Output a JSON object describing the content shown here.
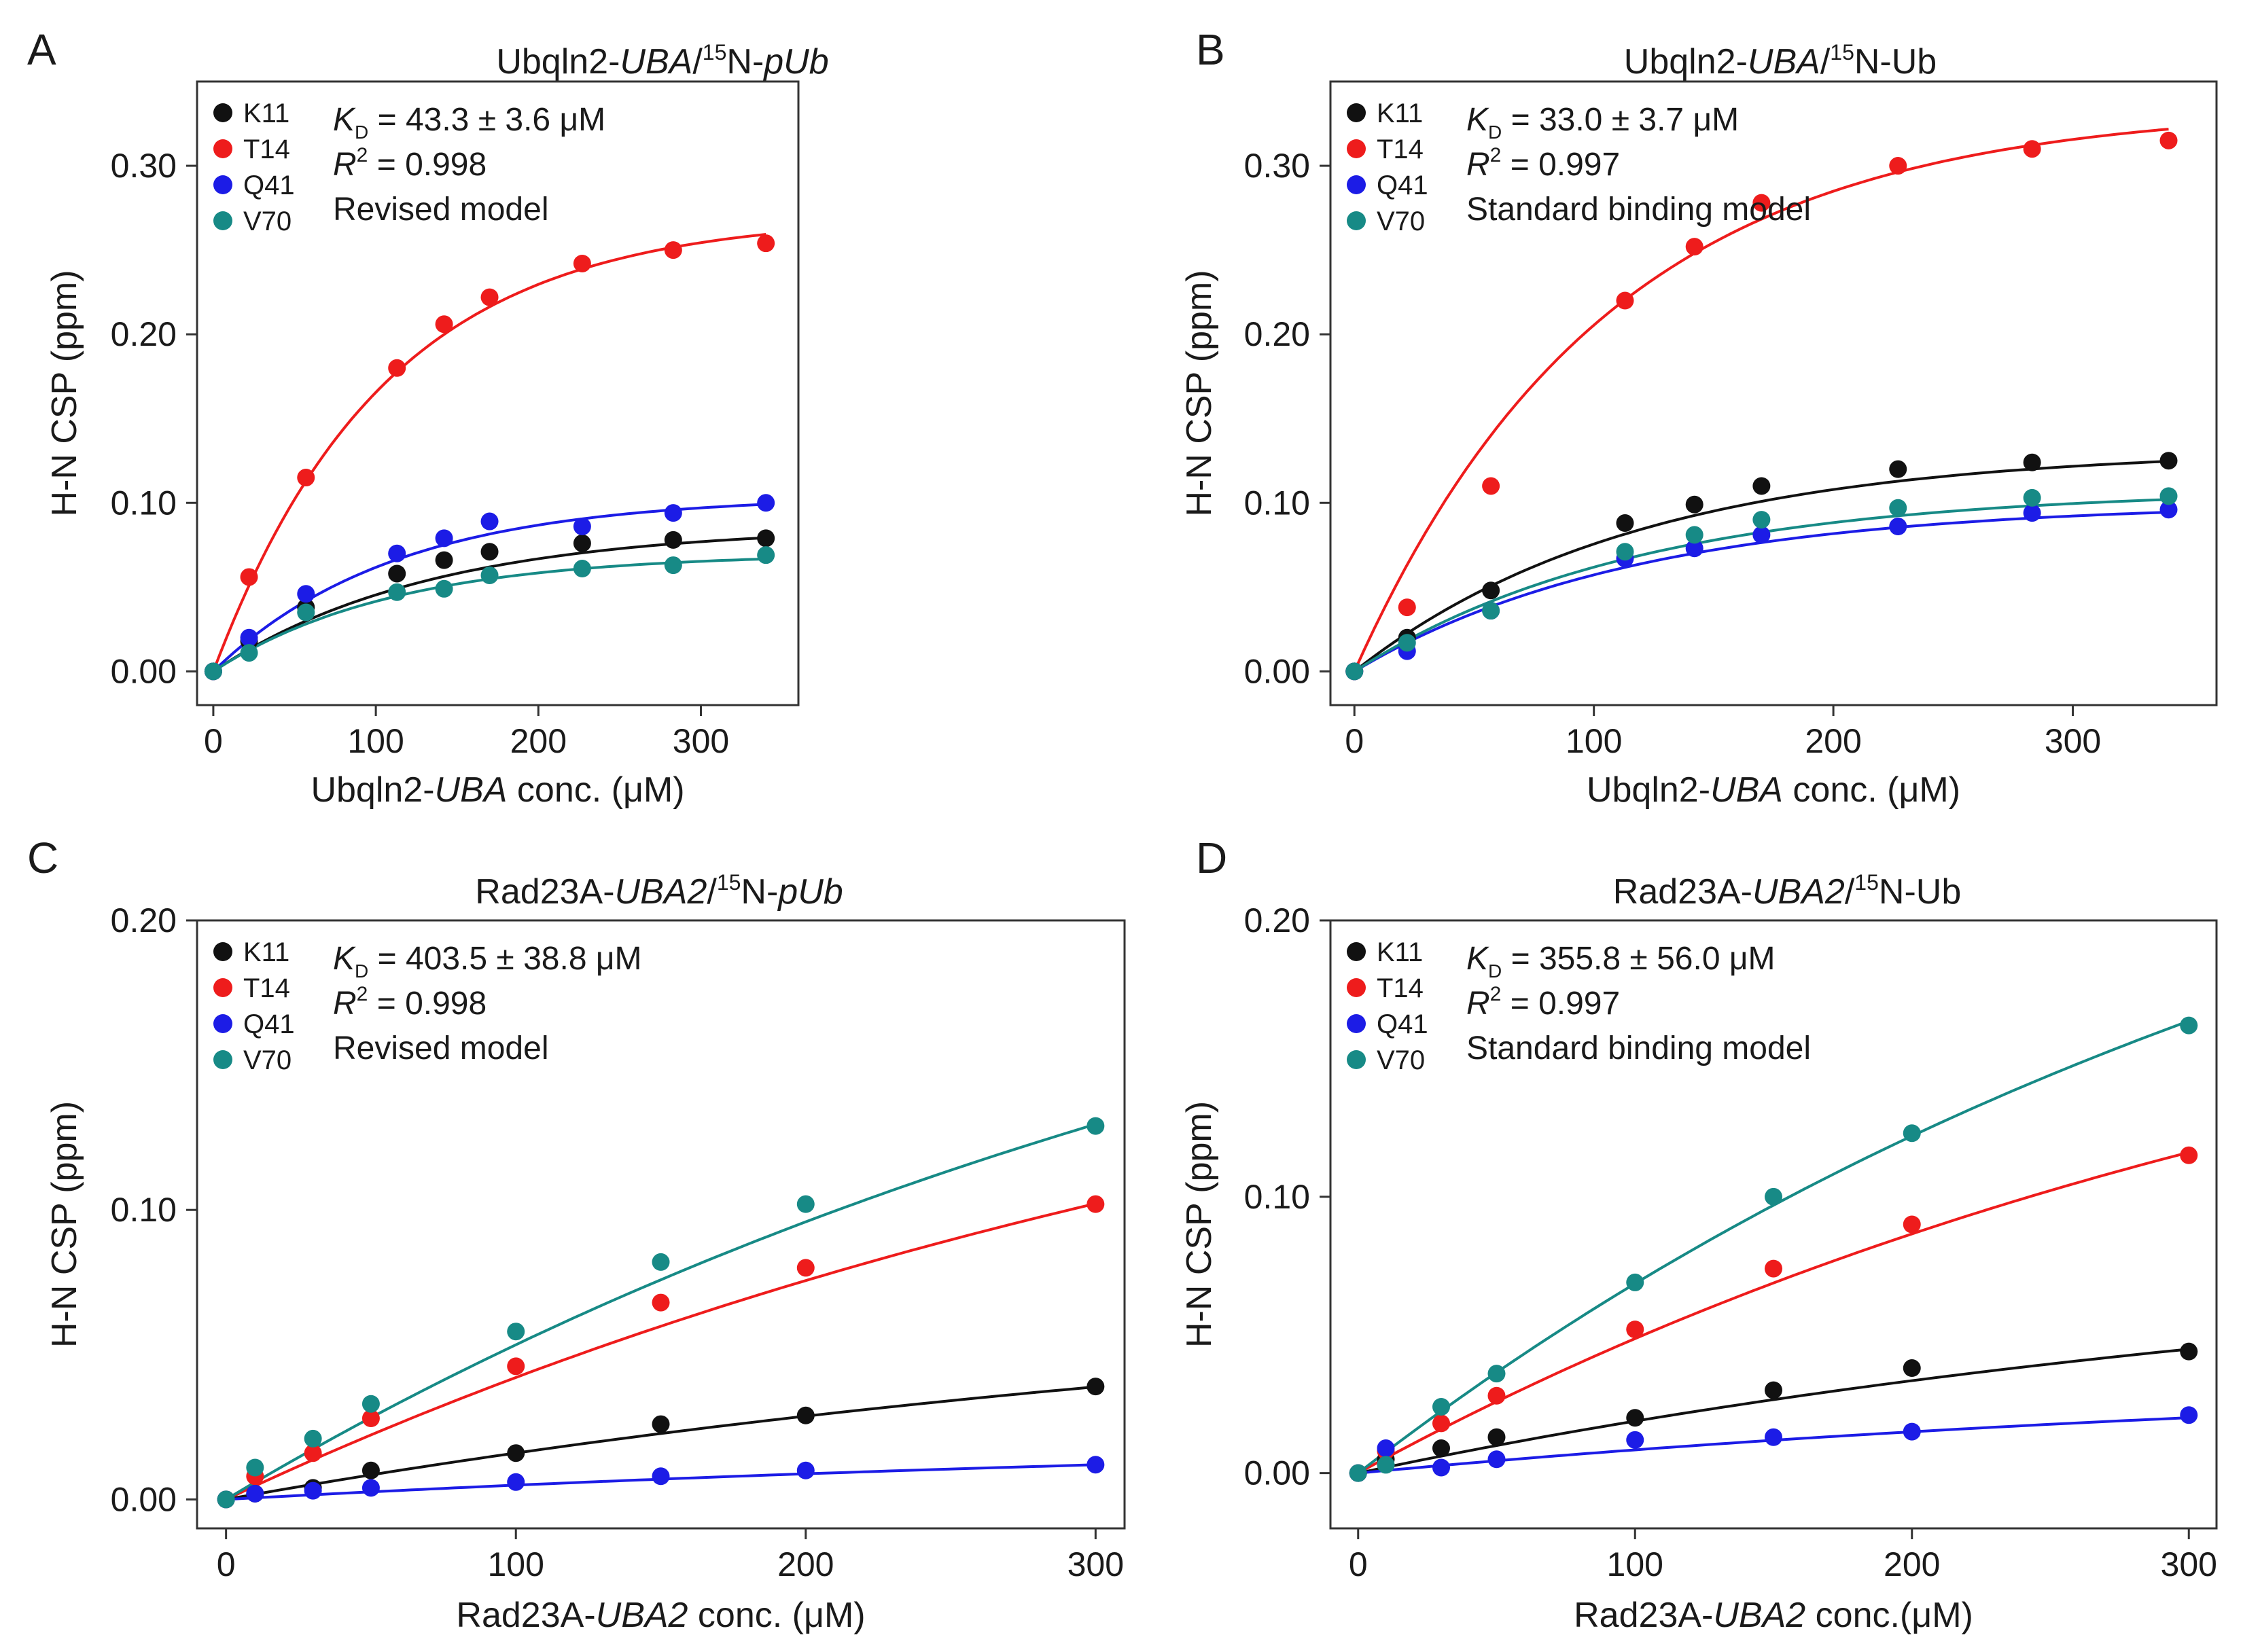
{
  "colors": {
    "K11": "#111111",
    "T14": "#ee1c1c",
    "Q41": "#1c1ce6",
    "V70": "#178a86",
    "axis": "#333333"
  },
  "chart_data": [
    {
      "type": "scatter",
      "panel_letter": "A",
      "title": {
        "pre": "Ubqln2-",
        "ital": "UBA",
        "slash": "/",
        "sup": "15",
        "post": "N-",
        "ital2": "pUb"
      },
      "xlabel": {
        "pre": "Ubqln2-",
        "ital": "UBA",
        "post": " conc. (μM)"
      },
      "ylabel": "H-N CSP (ppm)",
      "xlim": [
        -10,
        360
      ],
      "ylim": [
        -0.02,
        0.35
      ],
      "xticks": [
        0,
        100,
        200,
        300
      ],
      "xtick_labels": [
        "0",
        "100",
        "200",
        "300"
      ],
      "yticks": [
        0.0,
        0.1,
        0.2,
        0.3
      ],
      "ytick_labels": [
        "0.00",
        "0.10",
        "0.20",
        "0.30"
      ],
      "legend": [
        "K11",
        "T14",
        "Q41",
        "V70"
      ],
      "annotation": {
        "kd": "K",
        "kd_sub": "D",
        "kd_value": " = 43.3 ± 3.6 μM",
        "r2": "R",
        "r2_sup": "2",
        "r2_value": " = 0.998",
        "model": "Revised model"
      },
      "x": [
        0,
        22,
        57,
        113,
        142,
        170,
        227,
        283,
        340
      ],
      "series": [
        {
          "name": "K11",
          "values": [
            0,
            0.018,
            0.038,
            0.058,
            0.066,
            0.071,
            0.076,
            0.078,
            0.079
          ],
          "fit": {
            "amax": 0.086,
            "k": 0.0075
          }
        },
        {
          "name": "T14",
          "values": [
            0,
            0.056,
            0.115,
            0.18,
            0.206,
            0.222,
            0.242,
            0.25,
            0.254
          ],
          "fit": {
            "amax": 0.27,
            "k": 0.0095
          }
        },
        {
          "name": "Q41",
          "values": [
            0,
            0.02,
            0.046,
            0.07,
            0.079,
            0.089,
            0.086,
            0.094,
            0.1
          ],
          "fit": {
            "amax": 0.104,
            "k": 0.009
          }
        },
        {
          "name": "V70",
          "values": [
            0,
            0.011,
            0.035,
            0.047,
            0.049,
            0.057,
            0.061,
            0.063,
            0.069
          ],
          "fit": {
            "amax": 0.07,
            "k": 0.009
          }
        }
      ]
    },
    {
      "type": "scatter",
      "panel_letter": "B",
      "title": {
        "pre": "Ubqln2-",
        "ital": "UBA",
        "slash": "/",
        "sup": "15",
        "post": "N-Ub",
        "ital2": ""
      },
      "xlabel": {
        "pre": "Ubqln2-",
        "ital": "UBA",
        "post": " conc. (μM)"
      },
      "ylabel": "H-N CSP (ppm)",
      "xlim": [
        -10,
        360
      ],
      "ylim": [
        -0.02,
        0.35
      ],
      "xticks": [
        0,
        100,
        200,
        300
      ],
      "xtick_labels": [
        "0",
        "100",
        "200",
        "300"
      ],
      "yticks": [
        0.0,
        0.1,
        0.2,
        0.3
      ],
      "ytick_labels": [
        "0.00",
        "0.10",
        "0.20",
        "0.30"
      ],
      "legend": [
        "K11",
        "T14",
        "Q41",
        "V70"
      ],
      "annotation": {
        "kd": "K",
        "kd_sub": "D",
        "kd_value": " = 33.0 ± 3.7 μM",
        "r2": "R",
        "r2_sup": "2",
        "r2_value": " = 0.997",
        "model": "Standard binding model"
      },
      "x": [
        0,
        22,
        57,
        113,
        142,
        170,
        227,
        283,
        340
      ],
      "series": [
        {
          "name": "K11",
          "values": [
            0,
            0.02,
            0.048,
            0.088,
            0.099,
            0.11,
            0.12,
            0.124,
            0.125
          ],
          "fit": {
            "amax": 0.132,
            "k": 0.0085
          }
        },
        {
          "name": "T14",
          "values": [
            0,
            0.038,
            0.11,
            0.22,
            0.252,
            0.278,
            0.3,
            0.31,
            0.315
          ],
          "fit": {
            "amax": 0.335,
            "k": 0.0095
          }
        },
        {
          "name": "Q41",
          "values": [
            0,
            0.012,
            0.036,
            0.067,
            0.073,
            0.081,
            0.086,
            0.094,
            0.096
          ],
          "fit": {
            "amax": 0.1,
            "k": 0.0085
          }
        },
        {
          "name": "V70",
          "values": [
            0,
            0.017,
            0.036,
            0.071,
            0.081,
            0.09,
            0.097,
            0.103,
            0.104
          ],
          "fit": {
            "amax": 0.108,
            "k": 0.0085
          }
        }
      ]
    },
    {
      "type": "scatter",
      "panel_letter": "C",
      "title": {
        "pre": "Rad23A-",
        "ital": "UBA2",
        "slash": "/",
        "sup": "15",
        "post": "N-",
        "ital2": "pUb"
      },
      "xlabel": {
        "pre": "Rad23A-",
        "ital": "UBA2",
        "post": " conc. (μM)"
      },
      "ylabel": "H-N CSP (ppm)",
      "xlim": [
        -10,
        310
      ],
      "ylim": [
        -0.01,
        0.2
      ],
      "xticks": [
        0,
        100,
        200,
        300
      ],
      "xtick_labels": [
        "0",
        "100",
        "200",
        "300"
      ],
      "yticks": [
        0.0,
        0.1,
        0.2
      ],
      "ytick_labels": [
        "0.00",
        "0.10",
        "0.20"
      ],
      "legend": [
        "K11",
        "T14",
        "Q41",
        "V70"
      ],
      "annotation": {
        "kd": "K",
        "kd_sub": "D",
        "kd_value": " = 403.5 ± 38.8 μM",
        "r2": "R",
        "r2_sup": "2",
        "r2_value": " = 0.998",
        "model": "Revised model"
      },
      "x": [
        0,
        10,
        30,
        50,
        100,
        150,
        200,
        300
      ],
      "series": [
        {
          "name": "K11",
          "values": [
            0,
            0.002,
            0.004,
            0.01,
            0.016,
            0.026,
            0.029,
            0.039
          ],
          "fit": {
            "amax": 0.078,
            "k": 0.0023
          }
        },
        {
          "name": "T14",
          "values": [
            0,
            0.008,
            0.016,
            0.028,
            0.046,
            0.068,
            0.08,
            0.102
          ],
          "fit": {
            "amax": 0.205,
            "k": 0.0023
          }
        },
        {
          "name": "Q41",
          "values": [
            0,
            0.002,
            0.003,
            0.004,
            0.006,
            0.008,
            0.01,
            0.012
          ],
          "fit": {
            "amax": 0.024,
            "k": 0.0023
          }
        },
        {
          "name": "V70",
          "values": [
            0,
            0.011,
            0.021,
            0.033,
            0.058,
            0.082,
            0.102,
            0.129
          ],
          "fit": {
            "amax": 0.26,
            "k": 0.0023
          }
        }
      ]
    },
    {
      "type": "scatter",
      "panel_letter": "D",
      "title": {
        "pre": "Rad23A-",
        "ital": "UBA2",
        "slash": "/",
        "sup": "15",
        "post": "N-Ub",
        "ital2": ""
      },
      "xlabel": {
        "pre": "Rad23A-",
        "ital": "UBA2",
        "post": " conc.(μM)"
      },
      "ylabel": "H-N CSP (ppm)",
      "xlim": [
        -10,
        310
      ],
      "ylim": [
        -0.02,
        0.2
      ],
      "xticks": [
        0,
        100,
        200,
        300
      ],
      "xtick_labels": [
        "0",
        "100",
        "200",
        "300"
      ],
      "yticks": [
        0.0,
        0.1,
        0.2
      ],
      "ytick_labels": [
        "0.00",
        "0.10",
        "0.20"
      ],
      "legend": [
        "K11",
        "T14",
        "Q41",
        "V70"
      ],
      "annotation": {
        "kd": "K",
        "kd_sub": "D",
        "kd_value": " = 355.8 ± 56.0 μM",
        "r2": "R",
        "r2_sup": "2",
        "r2_value": " = 0.997",
        "model": "Standard binding model"
      },
      "x": [
        0,
        10,
        30,
        50,
        100,
        150,
        200,
        300
      ],
      "series": [
        {
          "name": "K11",
          "values": [
            0,
            0.005,
            0.009,
            0.013,
            0.02,
            0.03,
            0.038,
            0.044
          ],
          "fit": {
            "amax": 0.085,
            "k": 0.0025
          }
        },
        {
          "name": "T14",
          "values": [
            0,
            0.008,
            0.018,
            0.028,
            0.052,
            0.074,
            0.09,
            0.115
          ],
          "fit": {
            "amax": 0.22,
            "k": 0.0025
          }
        },
        {
          "name": "Q41",
          "values": [
            0,
            0.009,
            0.002,
            0.005,
            0.012,
            0.013,
            0.015,
            0.021
          ],
          "fit": {
            "amax": 0.038,
            "k": 0.0025
          }
        },
        {
          "name": "V70",
          "values": [
            0,
            0.003,
            0.024,
            0.036,
            0.069,
            0.1,
            0.123,
            0.162
          ],
          "fit": {
            "amax": 0.31,
            "k": 0.0025
          }
        }
      ]
    }
  ]
}
